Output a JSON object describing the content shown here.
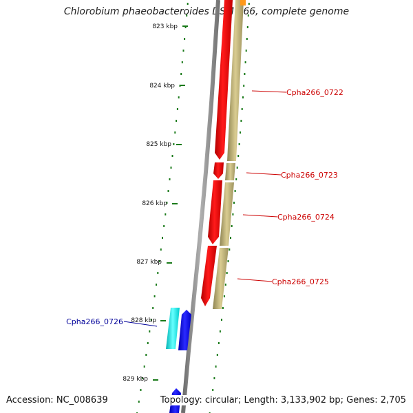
{
  "title": "Chlorobium phaeobacteroides DSM 266, complete genome",
  "footer": {
    "accession": "Accession: NC_008639",
    "topology": "Topology: circular; Length: 3,133,902 bp; Genes: 2,705"
  },
  "ticks": [
    {
      "label": "823 kbp"
    },
    {
      "label": "824 kbp"
    },
    {
      "label": "825 kbp"
    },
    {
      "label": "826 kbp"
    },
    {
      "label": "827 kbp"
    },
    {
      "label": "828 kbp"
    },
    {
      "label": "829 kbp"
    }
  ],
  "genes": [
    {
      "label": "Cpha266_0722",
      "strand": "forward",
      "color": "#cc0000"
    },
    {
      "label": "Cpha266_0723",
      "strand": "forward",
      "color": "#cc0000"
    },
    {
      "label": "Cpha266_0724",
      "strand": "forward",
      "color": "#cc0000"
    },
    {
      "label": "Cpha266_0725",
      "strand": "forward",
      "color": "#cc0000"
    },
    {
      "label": "Cpha266_0726",
      "strand": "reverse",
      "color": "#000099"
    }
  ],
  "colors": {
    "forward_cds": "#ff0000",
    "reverse_cds": "#0000ee",
    "rna": "#00e5e5",
    "cog": "#c8b878",
    "backbone": "#8c8c8c",
    "ticks": "#1a7a1a"
  }
}
